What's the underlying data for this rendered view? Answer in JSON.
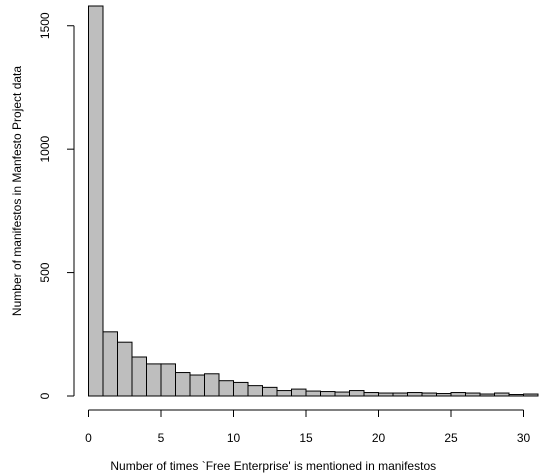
{
  "chart_data": {
    "type": "bar",
    "title": "",
    "xlabel": "Number of times `Free Enterprise' is mentioned in manifestos",
    "ylabel": "Number of manifestos in Manfesto Project data",
    "bin_width": 1,
    "x_start": 0,
    "xlim": [
      0,
      31
    ],
    "ylim": [
      0,
      1580
    ],
    "x_ticks": [
      0,
      5,
      10,
      15,
      20,
      25,
      30
    ],
    "y_ticks": [
      0,
      500,
      1000,
      1500
    ],
    "bar_fill": "#bebebe",
    "grid": false,
    "values": [
      1580,
      260,
      218,
      158,
      130,
      130,
      95,
      85,
      90,
      62,
      55,
      42,
      35,
      22,
      28,
      20,
      18,
      16,
      22,
      14,
      12,
      12,
      14,
      12,
      10,
      14,
      12,
      8,
      12,
      6,
      8
    ]
  }
}
